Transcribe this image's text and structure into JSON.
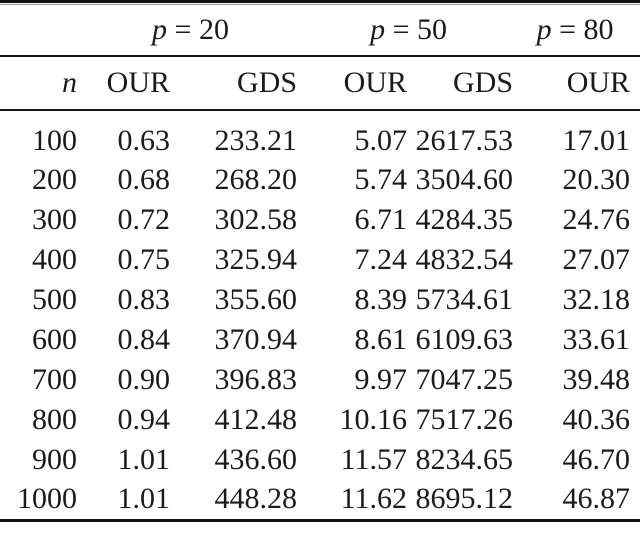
{
  "table": {
    "column_groups": [
      {
        "var": "p",
        "op": "=",
        "value": "20",
        "span": 2
      },
      {
        "var": "p",
        "op": "=",
        "value": "50",
        "span": 2
      },
      {
        "var": "p",
        "op": "=",
        "value": "80",
        "span": 1
      }
    ],
    "row_header": {
      "var": "n"
    },
    "sub_headers": [
      "OUR",
      "GDS",
      "OUR",
      "GDS",
      "OUR"
    ],
    "rows": [
      {
        "n": "100",
        "values": [
          "0.63",
          "233.21",
          "5.07",
          "2617.53",
          "17.01"
        ]
      },
      {
        "n": "200",
        "values": [
          "0.68",
          "268.20",
          "5.74",
          "3504.60",
          "20.30"
        ]
      },
      {
        "n": "300",
        "values": [
          "0.72",
          "302.58",
          "6.71",
          "4284.35",
          "24.76"
        ]
      },
      {
        "n": "400",
        "values": [
          "0.75",
          "325.94",
          "7.24",
          "4832.54",
          "27.07"
        ]
      },
      {
        "n": "500",
        "values": [
          "0.83",
          "355.60",
          "8.39",
          "5734.61",
          "32.18"
        ]
      },
      {
        "n": "600",
        "values": [
          "0.84",
          "370.94",
          "8.61",
          "6109.63",
          "33.61"
        ]
      },
      {
        "n": "700",
        "values": [
          "0.90",
          "396.83",
          "9.97",
          "7047.25",
          "39.48"
        ]
      },
      {
        "n": "800",
        "values": [
          "0.94",
          "412.48",
          "10.16",
          "7517.26",
          "40.36"
        ]
      },
      {
        "n": "900",
        "values": [
          "1.01",
          "436.60",
          "11.57",
          "8234.65",
          "46.70"
        ]
      },
      {
        "n": "1000",
        "values": [
          "1.01",
          "448.28",
          "11.62",
          "8695.12",
          "46.87"
        ]
      }
    ],
    "colors": {
      "text": "#1b1b1b",
      "rule": "#111111",
      "rule_shadow": "#9a9a9a",
      "background": "#ffffff"
    }
  },
  "chart_data": {
    "type": "table",
    "title": "",
    "column_group_labels": [
      "p = 20",
      "p = 50",
      "p = 80"
    ],
    "columns": [
      "n",
      "OUR (p=20)",
      "GDS (p=20)",
      "OUR (p=50)",
      "GDS (p=50)",
      "OUR (p=80)"
    ],
    "rows": [
      [
        100,
        0.63,
        233.21,
        5.07,
        2617.53,
        17.01
      ],
      [
        200,
        0.68,
        268.2,
        5.74,
        3504.6,
        20.3
      ],
      [
        300,
        0.72,
        302.58,
        6.71,
        4284.35,
        24.76
      ],
      [
        400,
        0.75,
        325.94,
        7.24,
        4832.54,
        27.07
      ],
      [
        500,
        0.83,
        355.6,
        8.39,
        5734.61,
        32.18
      ],
      [
        600,
        0.84,
        370.94,
        8.61,
        6109.63,
        33.61
      ],
      [
        700,
        0.9,
        396.83,
        9.97,
        7047.25,
        39.48
      ],
      [
        800,
        0.94,
        412.48,
        10.16,
        7517.26,
        40.36
      ],
      [
        900,
        1.01,
        436.6,
        11.57,
        8234.65,
        46.7
      ],
      [
        1000,
        1.01,
        448.28,
        11.62,
        8695.12,
        46.87
      ]
    ]
  }
}
